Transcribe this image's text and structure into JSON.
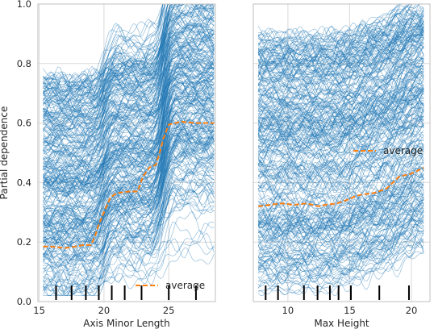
{
  "colors": {
    "ice": "#1f77b4",
    "average": "#ff7f0e",
    "grid": "#d9d9d9",
    "frame": "#bfbfbf",
    "rug": "#000000"
  },
  "chart_data": [
    {
      "type": "line",
      "subtype": "ice-partial-dependence",
      "xlabel": "Axis Minor Length",
      "ylabel": "Partial dependence",
      "xlim": [
        14.9,
        28.6
      ],
      "ylim": [
        0.0,
        1.0
      ],
      "xticks": [
        15,
        20,
        25
      ],
      "yticks": [
        0.0,
        0.2,
        0.4,
        0.6,
        0.8,
        1.0
      ],
      "ytick_labels": [
        "0.0",
        "0.2",
        "0.4",
        "0.6",
        "0.8",
        "1.0"
      ],
      "grid": true,
      "legend": "bottom-right",
      "series": [
        {
          "name": "average",
          "style": "dashed",
          "x": [
            15.3,
            16.0,
            17.0,
            17.8,
            18.4,
            19.0,
            19.3,
            19.6,
            20.0,
            20.5,
            21.0,
            22.0,
            22.6,
            23.0,
            23.5,
            24.0,
            24.3,
            24.6,
            25.0,
            25.5,
            26.0,
            27.0,
            28.0,
            28.5
          ],
          "y": [
            0.185,
            0.185,
            0.18,
            0.185,
            0.19,
            0.19,
            0.22,
            0.26,
            0.3,
            0.35,
            0.365,
            0.37,
            0.37,
            0.42,
            0.45,
            0.46,
            0.5,
            0.55,
            0.595,
            0.6,
            0.605,
            0.6,
            0.6,
            0.6
          ]
        }
      ],
      "ice_curves": {
        "count": 300,
        "band": [
          0.02,
          1.0
        ]
      },
      "rug": [
        16.3,
        17.5,
        18.6,
        19.6,
        20.6,
        21.6,
        22.9,
        25.0,
        27.1
      ]
    },
    {
      "type": "line",
      "subtype": "ice-partial-dependence",
      "xlabel": "Max Height",
      "ylabel": "",
      "xlim": [
        7.2,
        21.5
      ],
      "ylim": [
        0.0,
        1.0
      ],
      "xticks": [
        10,
        15,
        20
      ],
      "grid": true,
      "legend": "center-right",
      "series": [
        {
          "name": "average",
          "style": "dashed",
          "x": [
            7.6,
            8.5,
            9.5,
            10.5,
            11.5,
            12.5,
            13.0,
            14.0,
            15.0,
            15.5,
            16.0,
            17.0,
            18.0,
            18.5,
            19.0,
            19.5,
            20.0,
            20.5,
            21.0
          ],
          "y": [
            0.32,
            0.325,
            0.33,
            0.325,
            0.33,
            0.32,
            0.325,
            0.33,
            0.345,
            0.355,
            0.36,
            0.365,
            0.38,
            0.4,
            0.42,
            0.425,
            0.43,
            0.44,
            0.45
          ]
        }
      ],
      "ice_curves": {
        "count": 300,
        "band": [
          0.02,
          1.0
        ]
      },
      "rug": [
        8.2,
        9.2,
        11.3,
        12.4,
        13.4,
        14.1,
        15.1,
        17.4,
        19.8
      ]
    }
  ]
}
